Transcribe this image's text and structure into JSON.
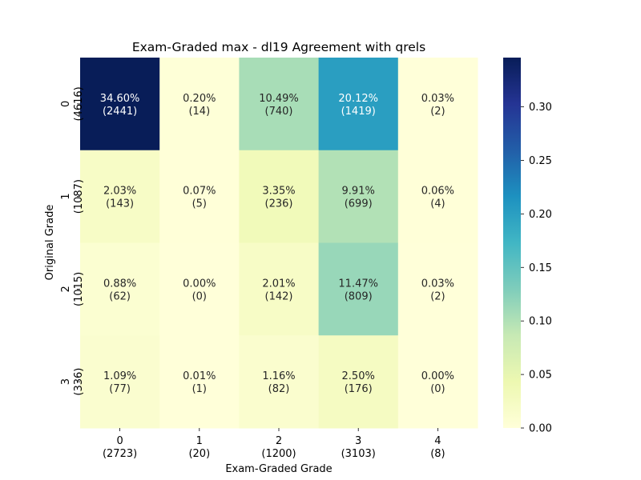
{
  "chart_data": {
    "type": "heatmap",
    "title": "Exam-Graded max - dl19 Agreement with qrels",
    "xlabel": "Exam-Graded Grade",
    "ylabel": "Original Grade",
    "x_categories": [
      "0",
      "1",
      "2",
      "3",
      "4"
    ],
    "x_counts": [
      "(2723)",
      "(20)",
      "(1200)",
      "(3103)",
      "(8)"
    ],
    "y_categories": [
      "0",
      "1",
      "2",
      "3"
    ],
    "y_counts": [
      "(4616)",
      "(1087)",
      "(1015)",
      "(336)"
    ],
    "values": [
      [
        0.346,
        0.002,
        0.1049,
        0.2012,
        0.0003
      ],
      [
        0.0203,
        0.0007,
        0.0335,
        0.0991,
        0.0006
      ],
      [
        0.0088,
        0.0,
        0.0201,
        0.1147,
        0.0003
      ],
      [
        0.0109,
        0.0001,
        0.0116,
        0.025,
        0.0
      ]
    ],
    "cell_percent_labels": [
      [
        "34.60%",
        "0.20%",
        "10.49%",
        "20.12%",
        "0.03%"
      ],
      [
        "2.03%",
        "0.07%",
        "3.35%",
        "9.91%",
        "0.06%"
      ],
      [
        "0.88%",
        "0.00%",
        "2.01%",
        "11.47%",
        "0.03%"
      ],
      [
        "1.09%",
        "0.01%",
        "1.16%",
        "2.50%",
        "0.00%"
      ]
    ],
    "cell_count_labels": [
      [
        "(2441)",
        "(14)",
        "(740)",
        "(1419)",
        "(2)"
      ],
      [
        "(143)",
        "(5)",
        "(236)",
        "(699)",
        "(4)"
      ],
      [
        "(62)",
        "(0)",
        "(142)",
        "(809)",
        "(2)"
      ],
      [
        "(77)",
        "(1)",
        "(82)",
        "(176)",
        "(0)"
      ]
    ],
    "colorbar": {
      "min": 0.0,
      "max": 0.346,
      "ticks": [
        0.0,
        0.05,
        0.1,
        0.15,
        0.2,
        0.25,
        0.3
      ],
      "tick_labels": [
        "0.00",
        "0.05",
        "0.10",
        "0.15",
        "0.20",
        "0.25",
        "0.30"
      ],
      "colormap": "YlGnBu"
    }
  }
}
